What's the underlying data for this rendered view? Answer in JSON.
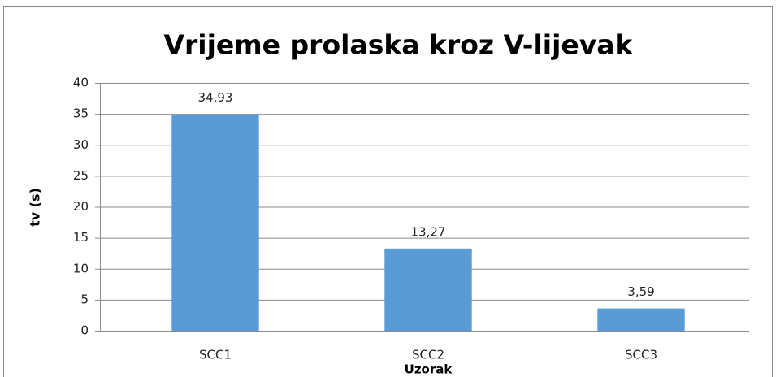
{
  "chart_data": {
    "type": "bar",
    "title": "Vrijeme prolaska kroz V-lijevak",
    "x_label": "Uzorak",
    "y_label": "tv (s)",
    "categories": [
      "SCC1",
      "SCC2",
      "SCC3"
    ],
    "values": [
      34.93,
      13.27,
      3.59
    ],
    "value_labels": [
      "34,93",
      "13,27",
      "3,59"
    ],
    "color": "#5b9bd5",
    "ylim": [
      0,
      40
    ],
    "yticks": [
      0,
      5,
      10,
      15,
      20,
      25,
      30,
      35,
      40
    ],
    "grid": true
  }
}
